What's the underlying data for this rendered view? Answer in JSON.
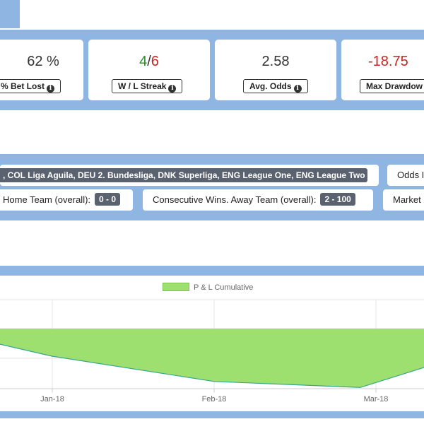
{
  "stats": {
    "bet_lost": {
      "value": "62 %",
      "label": "% Bet Lost"
    },
    "streak": {
      "win": "4",
      "sep": "/",
      "loss": "6",
      "label": "W / L Streak"
    },
    "avg_odds": {
      "value": "2.58",
      "label": "Avg. Odds"
    },
    "max_drawdown": {
      "value": "-18.75",
      "label": "Max Drawdow"
    }
  },
  "filters": {
    "leagues": ", COL Liga Aguila, DEU 2. Bundesliga, DNK Superliga, ENG League One, ENG League Two ...",
    "odds_label": "Odds I",
    "home_team": {
      "label": "Home Team (overall):",
      "value": "0 - 0"
    },
    "away_team": {
      "label": "Consecutive Wins. Away Team (overall):",
      "value": "2 - 100"
    },
    "market_label": "Market"
  },
  "chart_data": {
    "type": "area",
    "title": "",
    "legend": "P & L Cumulative",
    "legend_position": "top",
    "grid": true,
    "x_ticks": [
      "Jan-18",
      "Feb-18",
      "Mar-18"
    ],
    "series": [
      {
        "name": "P & L Cumulative",
        "color": "#9ee06f",
        "line_color": "#3aa58a",
        "points": [
          {
            "x": "2017-12-14",
            "y": -0.5
          },
          {
            "x": "2018-01-01",
            "y": -2.3
          },
          {
            "x": "2018-02-01",
            "y": -4.4
          },
          {
            "x": "2018-03-01",
            "y": -4.9
          },
          {
            "x": "2018-03-12",
            "y": -3.4
          }
        ]
      }
    ]
  }
}
